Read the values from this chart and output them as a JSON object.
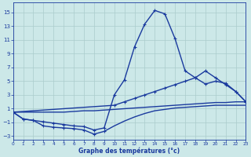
{
  "xlabel": "Graphe des températures (°c)",
  "bg_color": "#cce8e8",
  "grid_color": "#aacccc",
  "line_color": "#1a3a9e",
  "xlim": [
    0,
    23
  ],
  "ylim": [
    -3.5,
    16.5
  ],
  "xticks": [
    0,
    1,
    2,
    3,
    4,
    5,
    6,
    7,
    8,
    9,
    10,
    11,
    12,
    13,
    14,
    15,
    16,
    17,
    18,
    19,
    20,
    21,
    22,
    23
  ],
  "yticks": [
    -3,
    -1,
    1,
    3,
    5,
    7,
    9,
    11,
    13,
    15
  ],
  "curves": [
    {
      "x": [
        0,
        1,
        2,
        3,
        4,
        5,
        6,
        7,
        8,
        9,
        10,
        11,
        12,
        13,
        14,
        15,
        16,
        17,
        18,
        19,
        20,
        21,
        22,
        23
      ],
      "y": [
        0.5,
        0.5,
        0.5,
        0.5,
        0.5,
        0.5,
        0.6,
        0.7,
        0.7,
        0.8,
        0.9,
        1.0,
        1.1,
        1.2,
        1.3,
        1.4,
        1.5,
        1.6,
        1.7,
        1.8,
        1.9,
        1.9,
        2.0,
        2.0
      ],
      "marker": false,
      "lw": 1.0
    },
    {
      "x": [
        0,
        1,
        2,
        3,
        4,
        5,
        6,
        7,
        8,
        9,
        10,
        11,
        12,
        13,
        14,
        15,
        16,
        17,
        18,
        19,
        20,
        21,
        22,
        23
      ],
      "y": [
        0.5,
        -0.5,
        -0.7,
        -1.5,
        -1.7,
        -1.8,
        -1.9,
        -2.1,
        -2.7,
        -2.3,
        -1.5,
        -0.8,
        -0.2,
        0.3,
        0.7,
        0.9,
        1.1,
        1.2,
        1.3,
        1.4,
        1.5,
        1.5,
        1.5,
        1.5
      ],
      "marker": true,
      "marker_x": [
        0,
        1,
        2,
        3,
        4,
        5,
        6,
        7,
        8,
        9
      ],
      "lw": 1.0
    },
    {
      "x": [
        0,
        1,
        2,
        3,
        4,
        5,
        6,
        7,
        8,
        9,
        10,
        11,
        12,
        13,
        14,
        15,
        16,
        17,
        18,
        19,
        20,
        21,
        22,
        23
      ],
      "y": [
        0.5,
        -0.5,
        -0.7,
        -0.9,
        -1.1,
        -1.3,
        -1.5,
        -1.6,
        -2.1,
        -1.8,
        3.0,
        5.2,
        10.0,
        13.3,
        15.3,
        14.8,
        11.2,
        6.5,
        5.5,
        4.6,
        5.0,
        4.7,
        3.5,
        2.0
      ],
      "marker": true,
      "lw": 1.0
    },
    {
      "x": [
        0,
        10,
        11,
        12,
        13,
        14,
        15,
        16,
        17,
        18,
        19,
        20,
        21,
        22,
        23
      ],
      "y": [
        0.5,
        1.5,
        2.0,
        2.5,
        3.0,
        3.5,
        4.0,
        4.5,
        5.0,
        5.5,
        6.5,
        5.5,
        4.5,
        3.5,
        2.0
      ],
      "marker": true,
      "lw": 1.0
    }
  ]
}
